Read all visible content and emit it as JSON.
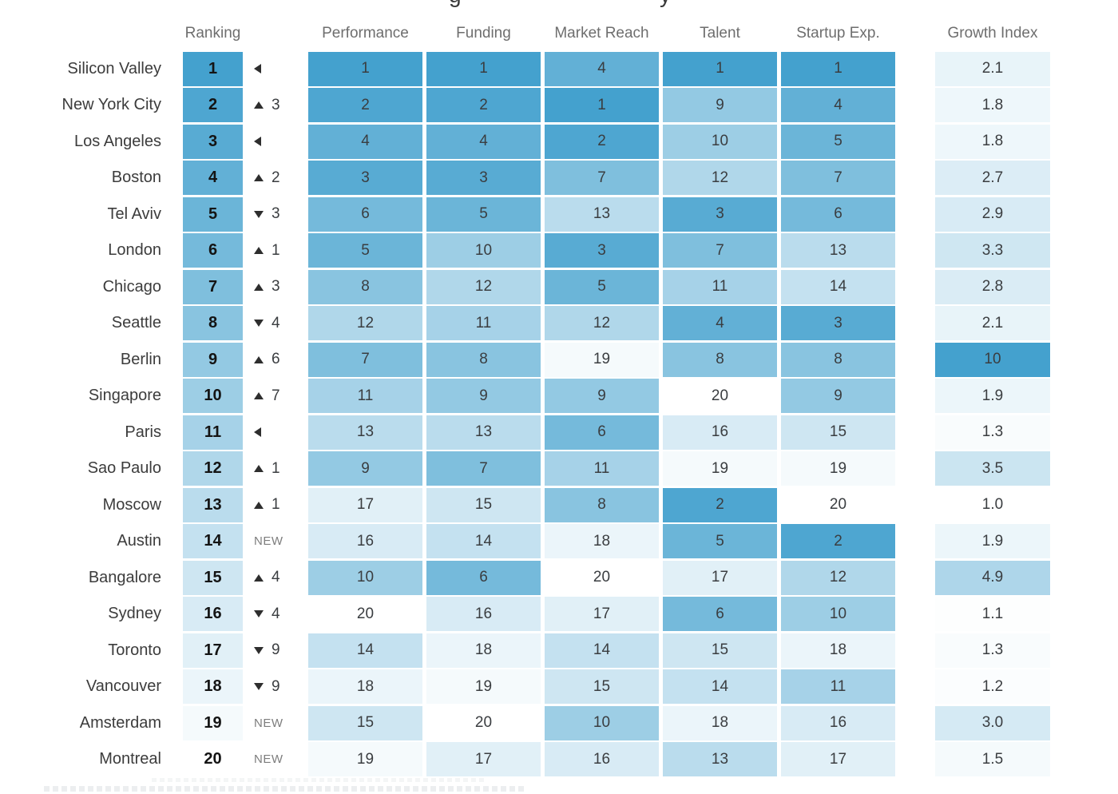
{
  "clipped_title_fragments": [
    "g",
    "y"
  ],
  "colors": {
    "heat_dark": "#44a1ce",
    "heat_light": "#ffffff",
    "header_text": "#6e6e6e",
    "label_text": "#3c3c3c",
    "value_text": "#3a3d40",
    "rank_text": "#141414",
    "change_icon": "#2e2e2e",
    "new_text": "#7d7d7d"
  },
  "chart_data": {
    "type": "heatmap",
    "column_headers": [
      "Ranking",
      "Performance",
      "Funding",
      "Market Reach",
      "Talent",
      "Startup Exp.",
      "Growth Index"
    ],
    "metric_keys": [
      "performance",
      "funding",
      "market_reach",
      "talent",
      "startup_exp"
    ],
    "rank_scale": {
      "min": 1,
      "max": 20,
      "dark_is_low_rank": true
    },
    "growth_scale": {
      "min": 1.0,
      "max": 10.0,
      "dark_is_high_value": true
    },
    "change_indicators": {
      "same": "left-triangle-icon",
      "up": "up-triangle-icon",
      "down": "down-triangle-icon",
      "new_label": "NEW"
    },
    "rows": [
      {
        "city": "Silicon Valley",
        "rank": 1,
        "change": "same",
        "change_amount": null,
        "performance": 1,
        "funding": 1,
        "market_reach": 4,
        "talent": 1,
        "startup_exp": 1,
        "growth_index": "2.1"
      },
      {
        "city": "New York City",
        "rank": 2,
        "change": "up",
        "change_amount": 3,
        "performance": 2,
        "funding": 2,
        "market_reach": 1,
        "talent": 9,
        "startup_exp": 4,
        "growth_index": "1.8"
      },
      {
        "city": "Los Angeles",
        "rank": 3,
        "change": "same",
        "change_amount": null,
        "performance": 4,
        "funding": 4,
        "market_reach": 2,
        "talent": 10,
        "startup_exp": 5,
        "growth_index": "1.8"
      },
      {
        "city": "Boston",
        "rank": 4,
        "change": "up",
        "change_amount": 2,
        "performance": 3,
        "funding": 3,
        "market_reach": 7,
        "talent": 12,
        "startup_exp": 7,
        "growth_index": "2.7"
      },
      {
        "city": "Tel Aviv",
        "rank": 5,
        "change": "down",
        "change_amount": 3,
        "performance": 6,
        "funding": 5,
        "market_reach": 13,
        "talent": 3,
        "startup_exp": 6,
        "growth_index": "2.9"
      },
      {
        "city": "London",
        "rank": 6,
        "change": "up",
        "change_amount": 1,
        "performance": 5,
        "funding": 10,
        "market_reach": 3,
        "talent": 7,
        "startup_exp": 13,
        "growth_index": "3.3"
      },
      {
        "city": "Chicago",
        "rank": 7,
        "change": "up",
        "change_amount": 3,
        "performance": 8,
        "funding": 12,
        "market_reach": 5,
        "talent": 11,
        "startup_exp": 14,
        "growth_index": "2.8"
      },
      {
        "city": "Seattle",
        "rank": 8,
        "change": "down",
        "change_amount": 4,
        "performance": 12,
        "funding": 11,
        "market_reach": 12,
        "talent": 4,
        "startup_exp": 3,
        "growth_index": "2.1"
      },
      {
        "city": "Berlin",
        "rank": 9,
        "change": "up",
        "change_amount": 6,
        "performance": 7,
        "funding": 8,
        "market_reach": 19,
        "talent": 8,
        "startup_exp": 8,
        "growth_index": "10"
      },
      {
        "city": "Singapore",
        "rank": 10,
        "change": "up",
        "change_amount": 7,
        "performance": 11,
        "funding": 9,
        "market_reach": 9,
        "talent": 20,
        "startup_exp": 9,
        "growth_index": "1.9"
      },
      {
        "city": "Paris",
        "rank": 11,
        "change": "same",
        "change_amount": null,
        "performance": 13,
        "funding": 13,
        "market_reach": 6,
        "talent": 16,
        "startup_exp": 15,
        "growth_index": "1.3"
      },
      {
        "city": "Sao Paulo",
        "rank": 12,
        "change": "up",
        "change_amount": 1,
        "performance": 9,
        "funding": 7,
        "market_reach": 11,
        "talent": 19,
        "startup_exp": 19,
        "growth_index": "3.5"
      },
      {
        "city": "Moscow",
        "rank": 13,
        "change": "up",
        "change_amount": 1,
        "performance": 17,
        "funding": 15,
        "market_reach": 8,
        "talent": 2,
        "startup_exp": 20,
        "growth_index": "1.0"
      },
      {
        "city": "Austin",
        "rank": 14,
        "change": "new",
        "change_amount": null,
        "performance": 16,
        "funding": 14,
        "market_reach": 18,
        "talent": 5,
        "startup_exp": 2,
        "growth_index": "1.9"
      },
      {
        "city": "Bangalore",
        "rank": 15,
        "change": "up",
        "change_amount": 4,
        "performance": 10,
        "funding": 6,
        "market_reach": 20,
        "talent": 17,
        "startup_exp": 12,
        "growth_index": "4.9"
      },
      {
        "city": "Sydney",
        "rank": 16,
        "change": "down",
        "change_amount": 4,
        "performance": 20,
        "funding": 16,
        "market_reach": 17,
        "talent": 6,
        "startup_exp": 10,
        "growth_index": "1.1"
      },
      {
        "city": "Toronto",
        "rank": 17,
        "change": "down",
        "change_amount": 9,
        "performance": 14,
        "funding": 18,
        "market_reach": 14,
        "talent": 15,
        "startup_exp": 18,
        "growth_index": "1.3"
      },
      {
        "city": "Vancouver",
        "rank": 18,
        "change": "down",
        "change_amount": 9,
        "performance": 18,
        "funding": 19,
        "market_reach": 15,
        "talent": 14,
        "startup_exp": 11,
        "growth_index": "1.2"
      },
      {
        "city": "Amsterdam",
        "rank": 19,
        "change": "new",
        "change_amount": null,
        "performance": 15,
        "funding": 20,
        "market_reach": 10,
        "talent": 18,
        "startup_exp": 16,
        "growth_index": "3.0"
      },
      {
        "city": "Montreal",
        "rank": 20,
        "change": "new",
        "change_amount": null,
        "performance": 19,
        "funding": 17,
        "market_reach": 16,
        "talent": 13,
        "startup_exp": 17,
        "growth_index": "1.5"
      }
    ]
  }
}
